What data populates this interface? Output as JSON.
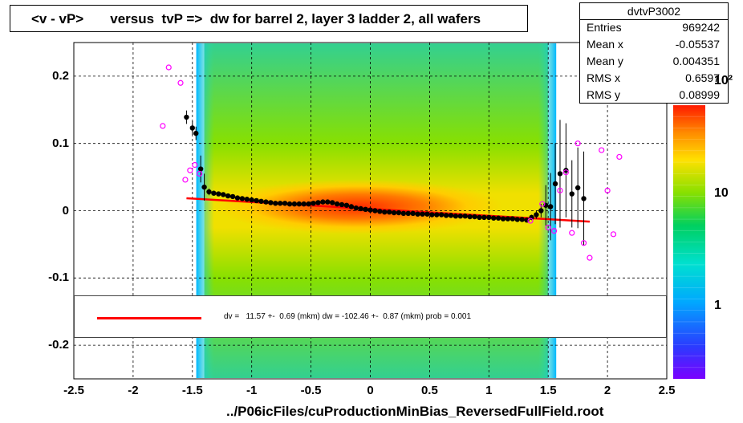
{
  "title": "<v - vP>       versus  tvP =>  dw for barrel 2, layer 3 ladder 2, all wafers",
  "footer": "../P06icFiles/cuProductionMinBias_ReversedFullField.root",
  "stats": {
    "name": "dvtvP3002",
    "rows": [
      {
        "key": "Entries",
        "value": "969242"
      },
      {
        "key": "Mean x",
        "value": "-0.05537"
      },
      {
        "key": "Mean y",
        "value": "0.004351"
      },
      {
        "key": "RMS x",
        "value": "0.6597"
      },
      {
        "key": "RMS y",
        "value": "0.08999"
      }
    ]
  },
  "fit_text": "dv =   11.57 +-  0.69 (mkm) dw = -102.46 +-  0.87 (mkm) prob = 0.001",
  "colors": {
    "fit_line": "#ff0000",
    "profile_marker": "#000000",
    "alt_marker": "#ff00ff"
  },
  "chart_data": {
    "type": "heatmap",
    "title": "<v - vP>       versus  tvP =>  dw for barrel 2, layer 3 ladder 2, all wafers",
    "xlim": [
      -2.5,
      2.5
    ],
    "ylim": [
      -0.25,
      0.25
    ],
    "x_ticks": [
      {
        "value": -2.5,
        "label": "-2.5"
      },
      {
        "value": -2,
        "label": "-2"
      },
      {
        "value": -1.5,
        "label": "-1.5"
      },
      {
        "value": -1,
        "label": "-1"
      },
      {
        "value": -0.5,
        "label": "-0.5"
      },
      {
        "value": 0,
        "label": "0"
      },
      {
        "value": 0.5,
        "label": "0.5"
      },
      {
        "value": 1,
        "label": "1"
      },
      {
        "value": 1.5,
        "label": "1.5"
      },
      {
        "value": 2,
        "label": "2"
      },
      {
        "value": 2.5,
        "label": "2.5"
      }
    ],
    "y_ticks": [
      {
        "value": 0.2,
        "label": "0.2"
      },
      {
        "value": 0.1,
        "label": "0.1"
      },
      {
        "value": 0,
        "label": "0"
      },
      {
        "value": -0.1,
        "label": "-0.1"
      },
      {
        "value": -0.2,
        "label": "-0.2"
      }
    ],
    "z_scale": "log",
    "z_ticks": [
      {
        "value": 1,
        "label": "1"
      },
      {
        "value": 10,
        "label": "10"
      },
      {
        "value": 100,
        "label": "10²"
      }
    ],
    "grid": true,
    "band_xlim": [
      -1.4,
      1.5
    ],
    "profile_black": {
      "x": [
        -1.55,
        -1.5,
        -1.47,
        -1.43,
        -1.4,
        -1.36,
        -1.32,
        -1.28,
        -1.24,
        -1.2,
        -1.16,
        -1.12,
        -1.08,
        -1.04,
        -1.0,
        -0.96,
        -0.92,
        -0.88,
        -0.84,
        -0.8,
        -0.76,
        -0.72,
        -0.68,
        -0.64,
        -0.6,
        -0.56,
        -0.52,
        -0.48,
        -0.44,
        -0.4,
        -0.36,
        -0.32,
        -0.28,
        -0.24,
        -0.2,
        -0.16,
        -0.12,
        -0.08,
        -0.04,
        0.0,
        0.04,
        0.08,
        0.12,
        0.16,
        0.2,
        0.24,
        0.28,
        0.32,
        0.36,
        0.4,
        0.44,
        0.48,
        0.52,
        0.56,
        0.6,
        0.64,
        0.68,
        0.72,
        0.76,
        0.8,
        0.84,
        0.88,
        0.92,
        0.96,
        1.0,
        1.04,
        1.08,
        1.12,
        1.16,
        1.2,
        1.24,
        1.28,
        1.32,
        1.36,
        1.4,
        1.44,
        1.48,
        1.52,
        1.56,
        1.6,
        1.65,
        1.7,
        1.75,
        1.8
      ],
      "y": [
        0.139,
        0.123,
        0.115,
        0.062,
        0.035,
        0.028,
        0.026,
        0.025,
        0.024,
        0.022,
        0.021,
        0.019,
        0.018,
        0.017,
        0.016,
        0.015,
        0.014,
        0.013,
        0.012,
        0.011,
        0.011,
        0.011,
        0.01,
        0.01,
        0.01,
        0.01,
        0.01,
        0.011,
        0.012,
        0.013,
        0.013,
        0.012,
        0.01,
        0.009,
        0.008,
        0.006,
        0.004,
        0.003,
        0.002,
        0.001,
        0.0,
        -0.001,
        -0.002,
        -0.002,
        -0.003,
        -0.003,
        -0.004,
        -0.004,
        -0.004,
        -0.005,
        -0.005,
        -0.005,
        -0.006,
        -0.006,
        -0.006,
        -0.007,
        -0.007,
        -0.008,
        -0.008,
        -0.008,
        -0.009,
        -0.009,
        -0.01,
        -0.01,
        -0.01,
        -0.011,
        -0.011,
        -0.012,
        -0.012,
        -0.012,
        -0.013,
        -0.013,
        -0.014,
        -0.01,
        -0.006,
        0.0,
        0.008,
        0.006,
        0.04,
        0.055,
        0.06,
        0.025,
        0.034,
        0.018
      ],
      "yerr": [
        0.01,
        0.01,
        0.01,
        0.02,
        0.02,
        0.005,
        0.003,
        0.002,
        0.002,
        0.002,
        0.002,
        0.002,
        0.002,
        0.002,
        0.002,
        0.002,
        0.002,
        0.002,
        0.002,
        0.002,
        0.002,
        0.002,
        0.002,
        0.002,
        0.002,
        0.002,
        0.002,
        0.002,
        0.002,
        0.002,
        0.002,
        0.002,
        0.002,
        0.002,
        0.002,
        0.002,
        0.002,
        0.002,
        0.002,
        0.002,
        0.002,
        0.002,
        0.002,
        0.002,
        0.002,
        0.002,
        0.002,
        0.002,
        0.002,
        0.002,
        0.002,
        0.002,
        0.002,
        0.002,
        0.002,
        0.002,
        0.002,
        0.002,
        0.002,
        0.002,
        0.002,
        0.002,
        0.002,
        0.002,
        0.002,
        0.002,
        0.002,
        0.002,
        0.002,
        0.002,
        0.002,
        0.002,
        0.002,
        0.004,
        0.006,
        0.01,
        0.03,
        0.05,
        0.06,
        0.08,
        0.07,
        0.05,
        0.06,
        0.07
      ]
    },
    "profile_magenta": {
      "x": [
        -1.75,
        -1.7,
        -1.6,
        -1.56,
        -1.52,
        -1.48,
        -1.44,
        1.35,
        1.45,
        1.5,
        1.55,
        1.6,
        1.65,
        1.7,
        1.75,
        1.8,
        1.85,
        1.95,
        2.0,
        2.05,
        2.1
      ],
      "y": [
        0.126,
        0.213,
        0.19,
        0.046,
        0.06,
        0.068,
        0.055,
        -0.015,
        0.01,
        -0.025,
        -0.03,
        0.03,
        0.057,
        -0.033,
        0.1,
        -0.048,
        -0.07,
        0.09,
        0.03,
        -0.035,
        0.08
      ]
    },
    "fit_line": {
      "x": [
        -1.55,
        1.85
      ],
      "y": [
        0.0185,
        -0.0162
      ]
    }
  }
}
